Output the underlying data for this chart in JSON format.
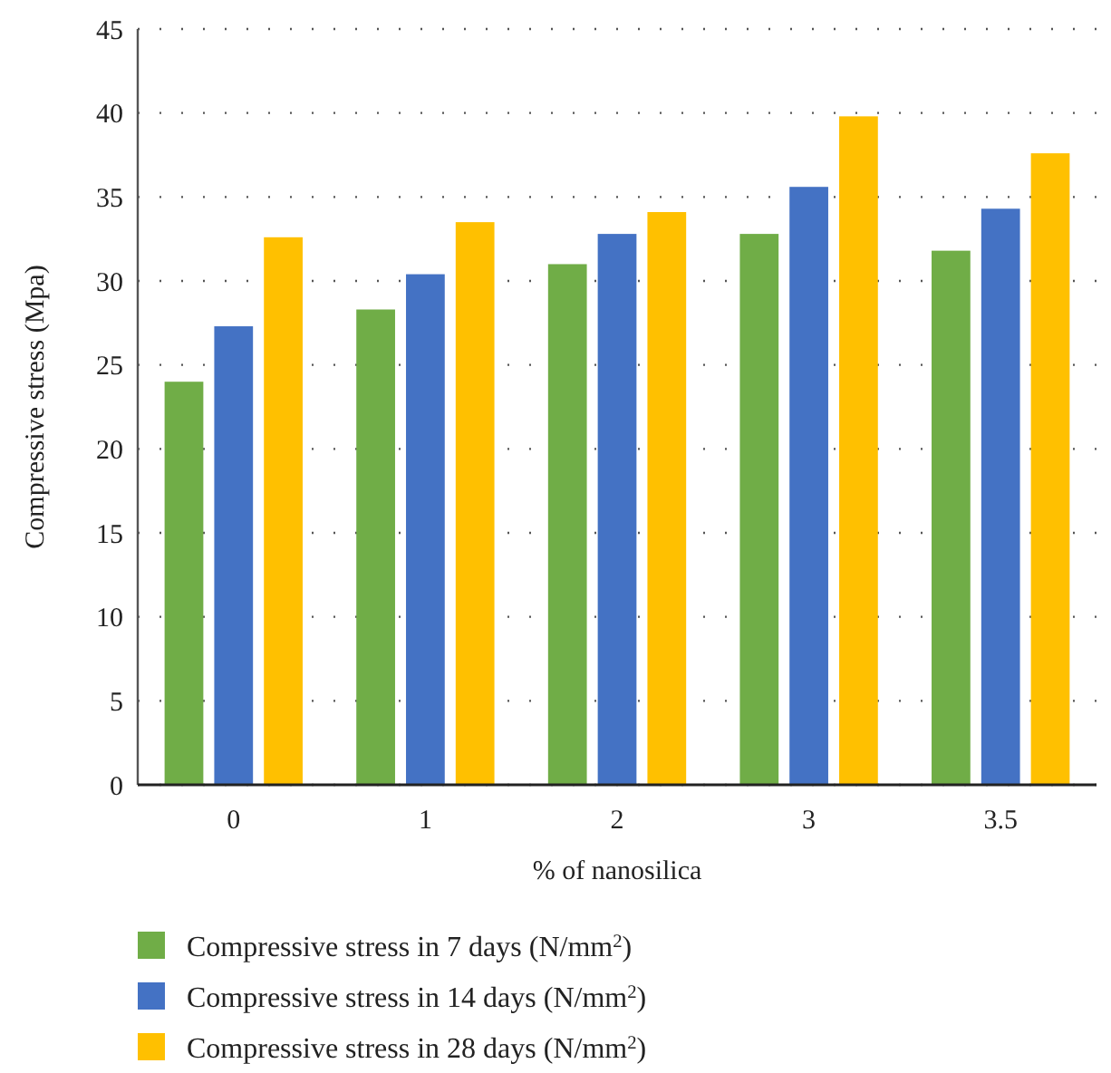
{
  "chart_data": {
    "type": "bar",
    "xlabel": "% of nanosilica",
    "ylabel": "Compressive stress (Mpa)",
    "categories": [
      "0",
      "1",
      "2",
      "3",
      "3.5"
    ],
    "series": [
      {
        "name": "Compressive stress in 7 days (N/mm$^{2}$)",
        "color": "#70ad47",
        "values": [
          24,
          28.3,
          31,
          32.8,
          31.8
        ]
      },
      {
        "name": "Compressive stress in 14 days (N/mm$^{2}$)",
        "color": "#4472c4",
        "values": [
          27.3,
          30.4,
          32.8,
          35.6,
          34.3
        ]
      },
      {
        "name": "Compressive stress in 28 days (N/mm$^{2}$)",
        "color": "#ffc000",
        "values": [
          32.6,
          33.5,
          34.1,
          39.8,
          37.6
        ]
      }
    ],
    "ylim": [
      0,
      45
    ],
    "yticks": [
      0,
      5,
      10,
      15,
      20,
      25,
      30,
      35,
      40,
      45
    ],
    "grid": "y",
    "legend": "bottom"
  }
}
